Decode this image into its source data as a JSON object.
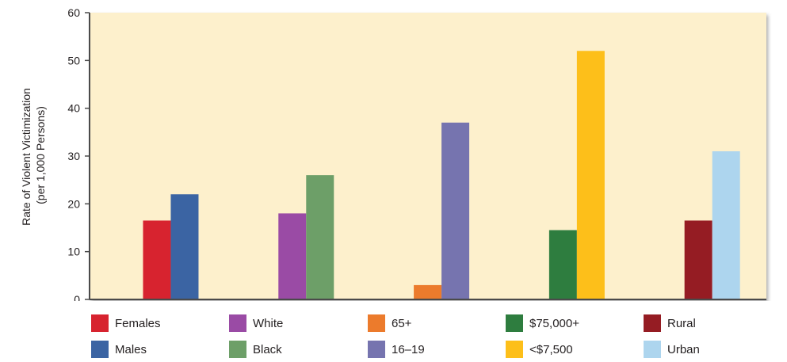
{
  "chart_data": {
    "type": "bar",
    "ylabel_lines": [
      "Rate of Violent Victimization",
      "(per 1,000 Persons)"
    ],
    "ylim": [
      0,
      60
    ],
    "yticks": [
      0,
      10,
      20,
      30,
      40,
      50,
      60
    ],
    "grid": false,
    "legend_position": "bottom",
    "groups": [
      {
        "bars": [
          {
            "name": "Females",
            "value": 16.5,
            "color": "#d7232f"
          },
          {
            "name": "Males",
            "value": 22,
            "color": "#3b64a3"
          }
        ]
      },
      {
        "bars": [
          {
            "name": "White",
            "value": 18,
            "color": "#9a4ba5"
          },
          {
            "name": "Black",
            "value": 26,
            "color": "#6d9f68"
          }
        ]
      },
      {
        "bars": [
          {
            "name": "65+",
            "value": 3,
            "color": "#ec7b2c"
          },
          {
            "name": "16–19",
            "value": 37,
            "color": "#7674af"
          }
        ]
      },
      {
        "bars": [
          {
            "name": "$75,000+",
            "value": 14.5,
            "color": "#2e7d3f"
          },
          {
            "name": "<$7,500",
            "value": 52,
            "color": "#fdbf1a"
          }
        ]
      },
      {
        "bars": [
          {
            "name": "Rural",
            "value": 16.5,
            "color": "#951c23"
          },
          {
            "name": "Urban",
            "value": 31,
            "color": "#add5ee"
          }
        ]
      }
    ],
    "plot_background": "#fdf0cc",
    "axis_color": "#4a4a4a"
  },
  "legend": {
    "items": [
      {
        "label": "Females",
        "color": "#d7232f"
      },
      {
        "label": "White",
        "color": "#9a4ba5"
      },
      {
        "label": "65+",
        "color": "#ec7b2c"
      },
      {
        "label": "$75,000+",
        "color": "#2e7d3f"
      },
      {
        "label": "Rural",
        "color": "#951c23"
      },
      {
        "label": "Males",
        "color": "#3b64a3"
      },
      {
        "label": "Black",
        "color": "#6d9f68"
      },
      {
        "label": "16–19",
        "color": "#7674af"
      },
      {
        "label": "<$7,500",
        "color": "#fdbf1a"
      },
      {
        "label": "Urban",
        "color": "#add5ee"
      }
    ]
  }
}
